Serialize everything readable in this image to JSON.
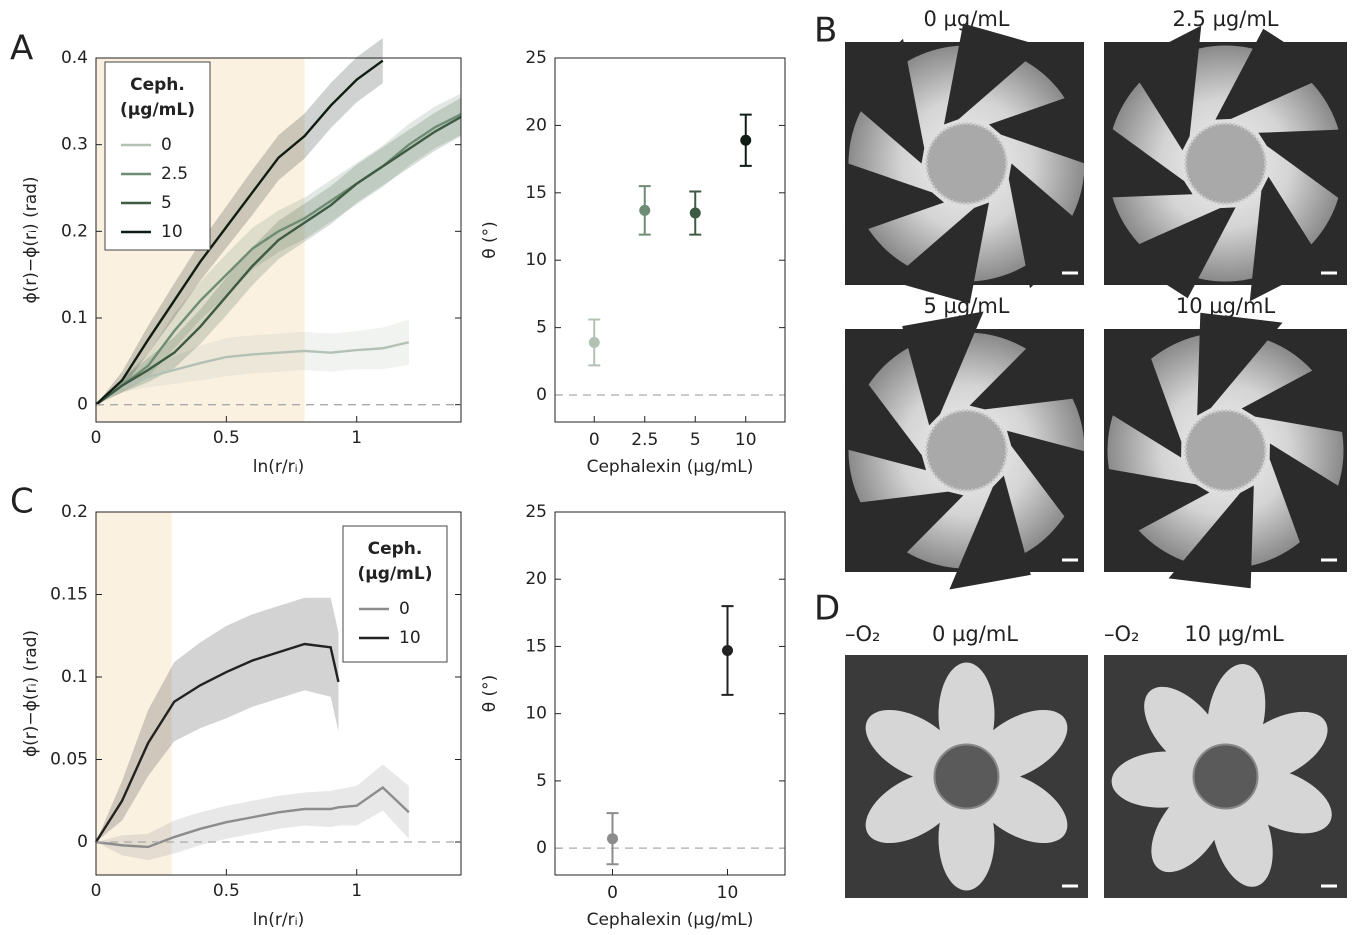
{
  "panel_labels": [
    "A",
    "B",
    "C",
    "D"
  ],
  "chart_data": [
    {
      "type": "line",
      "xlabel": "ln(r/rᵢ)",
      "ylabel": "ϕ(r)−ϕ(rᵢ) (rad)",
      "x": [
        0,
        0.1,
        0.2,
        0.3,
        0.4,
        0.5,
        0.6,
        0.7,
        0.8,
        0.9,
        1.0,
        1.1,
        1.2,
        1.3,
        1.4
      ],
      "xlim": [
        0,
        1.4
      ],
      "xticks": [
        0,
        0.5,
        1
      ],
      "ylim": [
        -0.02,
        0.4
      ],
      "yticks": [
        0,
        0.1,
        0.2,
        0.3,
        0.4
      ],
      "highlight": [
        0,
        0.8
      ],
      "legend_title": [
        "Ceph.",
        "(µg/mL)"
      ],
      "series": [
        {
          "name": "0",
          "color": "#b3c1b5",
          "values": [
            0,
            0.02,
            0.032,
            0.04,
            0.048,
            0.055,
            0.058,
            0.06,
            0.062,
            0.06,
            0.063,
            0.065,
            0.072,
            null,
            null
          ],
          "errors": [
            0,
            0.006,
            0.012,
            0.016,
            0.02,
            0.022,
            0.022,
            0.022,
            0.022,
            0.022,
            0.022,
            0.024,
            0.026,
            null,
            null
          ]
        },
        {
          "name": "2.5",
          "color": "#6e8c74",
          "values": [
            0,
            0.022,
            0.045,
            0.085,
            0.12,
            0.15,
            0.18,
            0.2,
            0.215,
            0.235,
            0.255,
            0.275,
            0.3,
            0.32,
            0.335
          ],
          "errors": [
            0,
            0.008,
            0.014,
            0.02,
            0.022,
            0.024,
            0.024,
            0.024,
            0.024,
            0.024,
            0.024,
            0.024,
            0.024,
            0.024,
            0.024
          ]
        },
        {
          "name": "5",
          "color": "#3d5a42",
          "values": [
            0,
            0.022,
            0.04,
            0.06,
            0.09,
            0.125,
            0.16,
            0.19,
            0.21,
            0.23,
            0.255,
            0.275,
            0.295,
            0.315,
            0.332
          ],
          "errors": [
            0,
            0.008,
            0.014,
            0.018,
            0.02,
            0.022,
            0.022,
            0.022,
            0.022,
            0.022,
            0.022,
            0.022,
            0.022,
            0.022,
            0.022
          ]
        },
        {
          "name": "10",
          "color": "#0f1d12",
          "values": [
            0,
            0.028,
            0.075,
            0.12,
            0.165,
            0.205,
            0.245,
            0.285,
            0.31,
            0.345,
            0.375,
            0.397,
            null,
            null,
            null
          ],
          "errors": [
            0,
            0.01,
            0.016,
            0.02,
            0.022,
            0.024,
            0.026,
            0.026,
            0.026,
            0.026,
            0.026,
            0.026,
            null,
            null,
            null
          ]
        }
      ]
    },
    {
      "type": "errorbar",
      "xlabel": "Cephalexin (µg/mL)",
      "ylabel": "θ (°)",
      "categories": [
        "0",
        "2.5",
        "5",
        "10"
      ],
      "values": [
        3.9,
        13.7,
        13.5,
        18.9
      ],
      "errors": [
        1.7,
        1.8,
        1.6,
        1.9
      ],
      "colors": [
        "#b3c1b5",
        "#6e8c74",
        "#3d5a42",
        "#0f1d12"
      ],
      "ylim": [
        -2,
        25
      ],
      "yticks": [
        0,
        5,
        10,
        15,
        20,
        25
      ]
    },
    {
      "type": "line",
      "xlabel": "ln(r/rᵢ)",
      "ylabel": "ϕ(r)−ϕ(rᵢ) (rad)",
      "x": [
        0,
        0.1,
        0.2,
        0.3,
        0.4,
        0.5,
        0.6,
        0.7,
        0.8,
        0.9,
        0.93,
        1.0,
        1.1,
        1.2
      ],
      "xlim": [
        0,
        1.4
      ],
      "xticks": [
        0,
        0.5,
        1
      ],
      "ylim": [
        -0.02,
        0.2
      ],
      "yticks": [
        0,
        0.05,
        0.1,
        0.15,
        0.2
      ],
      "highlight": [
        0,
        0.29
      ],
      "legend_title": [
        "Ceph.",
        "(µg/mL)"
      ],
      "series": [
        {
          "name": "0",
          "color": "#8c8c8c",
          "values": [
            0,
            -0.002,
            -0.003,
            0.003,
            0.008,
            0.012,
            0.015,
            0.018,
            0.02,
            0.02,
            0.021,
            0.022,
            0.033,
            0.018
          ],
          "errors": [
            0,
            0.006,
            0.008,
            0.01,
            0.01,
            0.01,
            0.01,
            0.01,
            0.01,
            0.011,
            0.011,
            0.012,
            0.014,
            0.016
          ]
        },
        {
          "name": "10",
          "color": "#222222",
          "values": [
            0,
            0.025,
            0.06,
            0.085,
            0.095,
            0.103,
            0.11,
            0.115,
            0.12,
            0.118,
            0.097,
            null,
            null,
            null
          ],
          "errors": [
            0,
            0.012,
            0.02,
            0.024,
            0.026,
            0.028,
            0.028,
            0.028,
            0.028,
            0.03,
            0.03,
            null,
            null,
            null
          ]
        }
      ]
    },
    {
      "type": "errorbar",
      "xlabel": "Cephalexin (µg/mL)",
      "ylabel": "θ (°)",
      "x": [
        0,
        10
      ],
      "xlim": [
        -5,
        15
      ],
      "xticks": [
        0,
        10
      ],
      "values": [
        0.7,
        14.7
      ],
      "errors": [
        1.9,
        3.3
      ],
      "colors": [
        "#8c8c8c",
        "#222222"
      ],
      "ylim": [
        -2,
        25
      ],
      "yticks": [
        0,
        5,
        10,
        15,
        20,
        25
      ]
    }
  ],
  "images_B": [
    {
      "title": "0 µg/mL",
      "color": "#b0b8b2"
    },
    {
      "title": "2.5 µg/mL",
      "color": "#6e8c74"
    },
    {
      "title": "5 µg/mL",
      "color": "#3d5a42"
    },
    {
      "title": "10 µg/mL",
      "color": "#111111"
    }
  ],
  "images_D": [
    {
      "condition": "–O₂",
      "title": "0 µg/mL",
      "color": "#b8b8b8"
    },
    {
      "condition": "–O₂",
      "title": "10 µg/mL",
      "color": "#111111"
    }
  ]
}
